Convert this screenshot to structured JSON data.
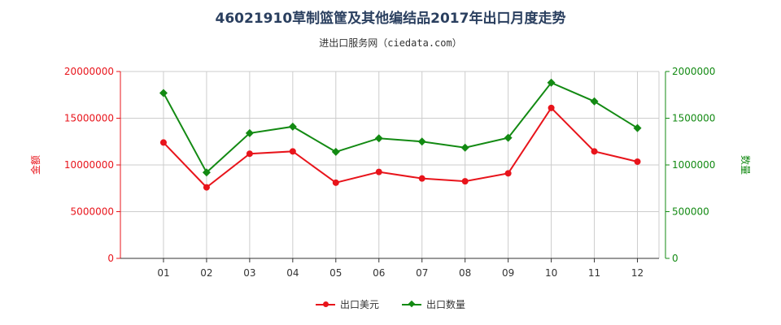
{
  "title": "46021910草制篮筐及其他编结品2017年出口月度走势",
  "subtitle": "进出口服务网（ciedata.com）",
  "colors": {
    "left_series": "#e8141b",
    "right_series": "#138a13",
    "grid": "#cccccc",
    "axis": "#333333"
  },
  "chart_data": {
    "type": "line",
    "categories": [
      "01",
      "02",
      "03",
      "04",
      "05",
      "06",
      "07",
      "08",
      "09",
      "10",
      "11",
      "12"
    ],
    "y_left": {
      "label": "金额",
      "range": [
        0,
        20000000
      ],
      "ticks": [
        0,
        5000000,
        10000000,
        15000000,
        20000000
      ]
    },
    "y_right": {
      "label": "数量",
      "range": [
        0,
        2000000
      ],
      "ticks": [
        0,
        500000,
        1000000,
        1500000,
        2000000
      ]
    },
    "series": [
      {
        "name": "出口美元",
        "axis": "left",
        "color": "#e8141b",
        "marker": "circle",
        "values": [
          12400000,
          7600000,
          11200000,
          11450000,
          8100000,
          9250000,
          8550000,
          8250000,
          9100000,
          16100000,
          11450000,
          10350000
        ]
      },
      {
        "name": "出口数量",
        "axis": "right",
        "color": "#138a13",
        "marker": "diamond",
        "values": [
          1770000,
          920000,
          1340000,
          1410000,
          1140000,
          1285000,
          1250000,
          1185000,
          1290000,
          1880000,
          1680000,
          1395000
        ]
      }
    ],
    "grid": true,
    "legend_position": "bottom-center"
  }
}
